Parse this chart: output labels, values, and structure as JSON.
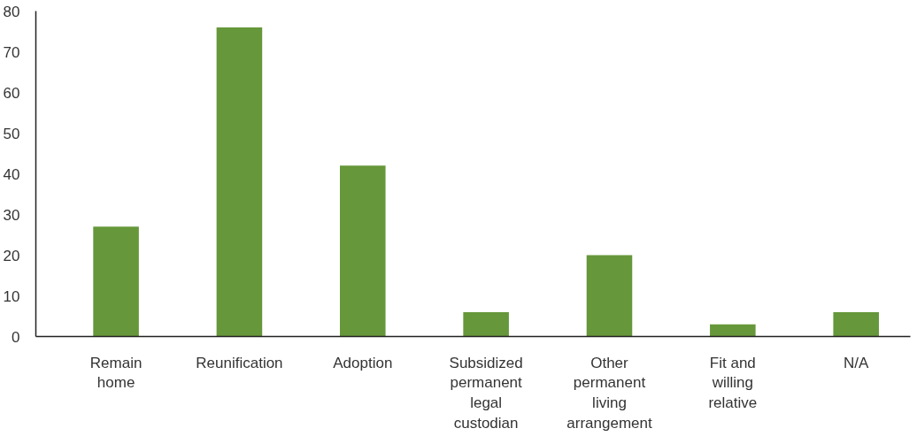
{
  "chart_data": {
    "type": "bar",
    "categories": [
      "Remain home",
      "Reunification",
      "Adoption",
      "Subsidized permanent legal custodian",
      "Other permanent living arrangement",
      "Fit and willing relative",
      "N/A"
    ],
    "values": [
      27,
      76,
      42,
      6,
      20,
      3,
      6
    ],
    "color": "#66973a",
    "ylim": [
      0,
      80
    ],
    "yticks": [
      0,
      10,
      20,
      30,
      40,
      50,
      60,
      70,
      80
    ],
    "grid": false
  }
}
